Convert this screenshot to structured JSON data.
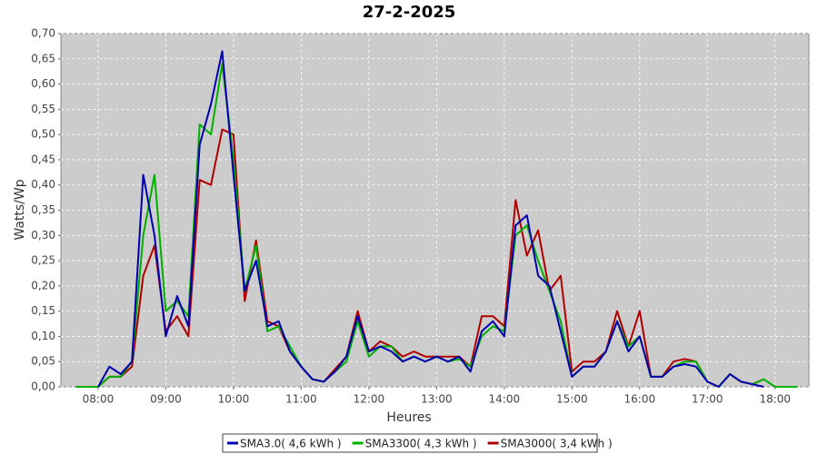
{
  "chart_data": {
    "type": "line",
    "title": "27-2-2025",
    "x_label": "Heures",
    "y_label": "Watts/Wp",
    "x": [
      "07:40",
      "07:50",
      "08:00",
      "08:10",
      "08:20",
      "08:30",
      "08:40",
      "08:50",
      "09:00",
      "09:10",
      "09:20",
      "09:30",
      "09:40",
      "09:50",
      "10:00",
      "10:10",
      "10:20",
      "10:30",
      "10:40",
      "10:50",
      "11:00",
      "11:10",
      "11:20",
      "11:30",
      "11:40",
      "11:50",
      "12:00",
      "12:10",
      "12:20",
      "12:30",
      "12:40",
      "12:50",
      "13:00",
      "13:10",
      "13:20",
      "13:30",
      "13:40",
      "13:50",
      "14:00",
      "14:10",
      "14:20",
      "14:30",
      "14:40",
      "14:50",
      "15:00",
      "15:10",
      "15:20",
      "15:30",
      "15:40",
      "15:50",
      "16:00",
      "16:10",
      "16:20",
      "16:30",
      "16:40",
      "16:50",
      "17:00",
      "17:10",
      "17:20",
      "17:30",
      "17:40",
      "17:50",
      "18:00",
      "18:10",
      "18:20"
    ],
    "xlim": [
      "07:27",
      "18:30"
    ],
    "xticks": [
      "08:00",
      "09:00",
      "10:00",
      "11:00",
      "12:00",
      "13:00",
      "14:00",
      "15:00",
      "16:00",
      "17:00",
      "18:00"
    ],
    "ylim": [
      0,
      0.7
    ],
    "yticks": [
      {
        "value": 0,
        "label": "0,00"
      },
      {
        "value": 0.05,
        "label": "0,05"
      },
      {
        "value": 0.1,
        "label": "0,10"
      },
      {
        "value": 0.15,
        "label": "0,15"
      },
      {
        "value": 0.2,
        "label": "0,20"
      },
      {
        "value": 0.25,
        "label": "0,25"
      },
      {
        "value": 0.3,
        "label": "0,30"
      },
      {
        "value": 0.35,
        "label": "0,35"
      },
      {
        "value": 0.4,
        "label": "0,40"
      },
      {
        "value": 0.45,
        "label": "0,45"
      },
      {
        "value": 0.5,
        "label": "0,50"
      },
      {
        "value": 0.55,
        "label": "0,55"
      },
      {
        "value": 0.6,
        "label": "0,60"
      },
      {
        "value": 0.65,
        "label": "0,65"
      },
      {
        "value": 0.7,
        "label": "0,70"
      }
    ],
    "grid": true,
    "series": [
      {
        "name": "SMA3.0( 4,6 kWh )",
        "color": "#0000b0",
        "values": [
          null,
          null,
          0,
          0.04,
          0.025,
          0.05,
          0.42,
          0.3,
          0.1,
          0.18,
          0.12,
          0.48,
          0.56,
          0.665,
          0.42,
          0.19,
          0.25,
          0.12,
          0.13,
          0.07,
          0.04,
          0.015,
          0.01,
          0.03,
          0.06,
          0.14,
          0.07,
          0.08,
          0.07,
          0.05,
          0.06,
          0.05,
          0.06,
          0.05,
          0.06,
          0.03,
          0.11,
          0.13,
          0.1,
          0.32,
          0.34,
          0.22,
          0.2,
          0.11,
          0.02,
          0.04,
          0.04,
          0.07,
          0.13,
          0.07,
          0.1,
          0.02,
          0.02,
          0.04,
          0.045,
          0.04,
          0.01,
          0,
          0.025,
          0.01,
          0.005,
          0,
          null,
          null,
          null
        ]
      },
      {
        "name": "SMA3300( 4,3 kWh )",
        "color": "#00b000",
        "values": [
          0,
          0,
          0,
          0.02,
          0.02,
          0.05,
          0.3,
          0.42,
          0.15,
          0.17,
          0.14,
          0.52,
          0.5,
          0.64,
          0.45,
          0.19,
          0.28,
          0.11,
          0.12,
          0.08,
          0.04,
          0.015,
          0.01,
          0.03,
          0.05,
          0.13,
          0.06,
          0.08,
          0.08,
          0.05,
          0.06,
          0.05,
          0.06,
          0.05,
          0.055,
          0.04,
          0.1,
          0.12,
          0.11,
          0.3,
          0.32,
          0.25,
          0.19,
          0.13,
          0.02,
          0.04,
          0.04,
          0.07,
          0.13,
          0.08,
          0.1,
          0.02,
          0.02,
          0.04,
          0.05,
          0.05,
          0.01,
          0,
          0.025,
          0.01,
          0.005,
          0.015,
          0,
          0,
          0
        ]
      },
      {
        "name": "SMA3000( 3,4 kWh )",
        "color": "#b00000",
        "values": [
          null,
          null,
          0,
          0.02,
          0.02,
          0.04,
          0.22,
          0.28,
          0.11,
          0.14,
          0.1,
          0.41,
          0.4,
          0.51,
          0.5,
          0.17,
          0.29,
          0.13,
          0.12,
          0.07,
          0.04,
          0.015,
          0.01,
          0.035,
          0.06,
          0.15,
          0.07,
          0.09,
          0.08,
          0.06,
          0.07,
          0.06,
          0.06,
          0.06,
          0.06,
          0.04,
          0.14,
          0.14,
          0.12,
          0.37,
          0.26,
          0.31,
          0.19,
          0.22,
          0.03,
          0.05,
          0.05,
          0.07,
          0.15,
          0.08,
          0.15,
          0.02,
          0.02,
          0.05,
          0.055,
          0.05,
          0.01,
          0,
          0.025,
          0.01,
          0.005,
          0.015,
          null,
          null,
          null
        ]
      }
    ]
  }
}
